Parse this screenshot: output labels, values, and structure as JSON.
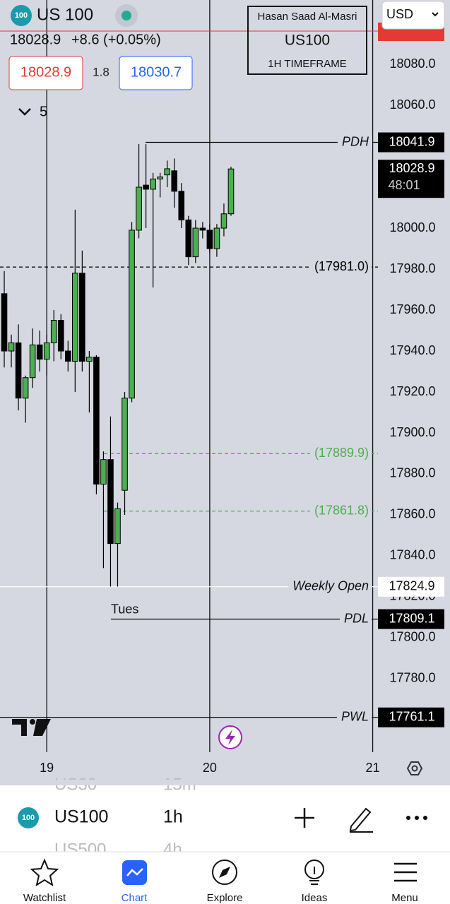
{
  "header": {
    "logo": "100",
    "symbol": "US 100",
    "quote": "18028.9",
    "change": "+8.6 (+0.05%)",
    "sell": "18028.9",
    "spread": "1.8",
    "buy": "18030.7",
    "indicator_count": "5",
    "currency": "USD"
  },
  "watermark": {
    "name": "Hasan Saad Al-Masri",
    "symbol": "US100",
    "timeframe": "1H TIMEFRAME"
  },
  "chart_data": {
    "type": "candlestick",
    "open": [
      17968,
      17940,
      17944,
      17917,
      17927,
      17943,
      17936,
      17944,
      17955,
      17940,
      17935,
      17978,
      17935,
      17937,
      17875,
      17887,
      17846,
      17872,
      17917,
      17999,
      18021,
      18019,
      18024,
      18026,
      18028,
      18018,
      18004,
      17986,
      18000,
      17999,
      17990,
      18000,
      18007
    ],
    "high": [
      17979,
      17948,
      17953,
      17928,
      17951,
      17950,
      17948,
      17960,
      17958,
      17945,
      18009,
      17989,
      17940,
      17938,
      17891,
      17908,
      17866,
      17920,
      18003,
      18041,
      18041,
      18027,
      18027,
      18033,
      18034,
      18022,
      18006,
      18004,
      18003,
      18002,
      18002,
      18012,
      18030
    ],
    "low": [
      17932,
      17932,
      17911,
      17905,
      17922,
      17930,
      17928,
      17935,
      17936,
      17930,
      17920,
      17930,
      17910,
      17870,
      17834,
      17825,
      17825,
      17860,
      17915,
      17995,
      18000,
      17971,
      18015,
      18020,
      18010,
      18000,
      17982,
      17983,
      17995,
      17988,
      17986,
      17996,
      18006
    ],
    "close": [
      17940,
      17944,
      17917,
      17927,
      17943,
      17936,
      17944,
      17955,
      17940,
      17935,
      17978,
      17935,
      17937,
      17875,
      17887,
      17846,
      17863,
      17917,
      17999,
      18020,
      18019,
      18024,
      18025,
      18029,
      18018,
      18004,
      17986,
      18000,
      17999,
      17990,
      18000,
      18007,
      18028.9
    ],
    "up_color": "#4caf50",
    "down_color": "#000000",
    "countdown": "48:01",
    "annotation": "Tues",
    "xlim": [
      -0.6,
      52.74
    ],
    "xticks": [
      {
        "value": 6,
        "label": "19"
      },
      {
        "value": 29,
        "label": "20"
      },
      {
        "value": 52,
        "label": "21"
      }
    ],
    "ylim": [
      17742.4,
      18111.4
    ],
    "yticks": [
      {
        "value": 18080,
        "label": "18080.0"
      },
      {
        "value": 18060,
        "label": "18060.0"
      },
      {
        "value": 18000,
        "label": "18000.0"
      },
      {
        "value": 17980,
        "label": "17980.0"
      },
      {
        "value": 17960,
        "label": "17960.0"
      },
      {
        "value": 17940,
        "label": "17940.0"
      },
      {
        "value": 17920,
        "label": "17920.0"
      },
      {
        "value": 17900,
        "label": "17900.0"
      },
      {
        "value": 17880,
        "label": "17880.0"
      },
      {
        "value": 17860,
        "label": "17860.0"
      },
      {
        "value": 17840,
        "label": "17840.0"
      },
      {
        "value": 17820,
        "label": "17820.0"
      },
      {
        "value": 17800,
        "label": "17800.0"
      },
      {
        "value": 17780,
        "label": "17780.0"
      }
    ],
    "levels": [
      {
        "name": "PDH",
        "value": 18041.9,
        "color": "#000000",
        "dashed": false,
        "tag_fill": "#000000"
      },
      {
        "value": 17981.0,
        "value_label": "(17981.0)",
        "color": "#000000",
        "dashed": true
      },
      {
        "value": 17889.9,
        "value_label": "(17889.9)",
        "color": "#4caf50",
        "dashed": true
      },
      {
        "value": 17861.8,
        "value_label": "(17861.8)",
        "color": "#4caf50",
        "dashed": true
      },
      {
        "name": "Weekly Open",
        "value": 17824.9,
        "color": "#ffffff",
        "dashed": false,
        "tag_fill": "#ffffff"
      },
      {
        "name": "PDL",
        "value": 17809.1,
        "color": "#000000",
        "dashed": false,
        "tag_fill": "#000000"
      },
      {
        "name": "PWL",
        "value": 17761.1,
        "color": "#000000",
        "dashed": false,
        "tag_fill": "#000000"
      }
    ]
  },
  "toolbar": {
    "logo": "100",
    "symbol": "US100",
    "interval": "1h",
    "symbol_above": "US30",
    "interval_above": "15m",
    "symbol_below": "US500",
    "interval_below": "4h"
  },
  "nav": [
    "Watchlist",
    "Chart",
    "Explore",
    "Ideas",
    "Menu"
  ]
}
